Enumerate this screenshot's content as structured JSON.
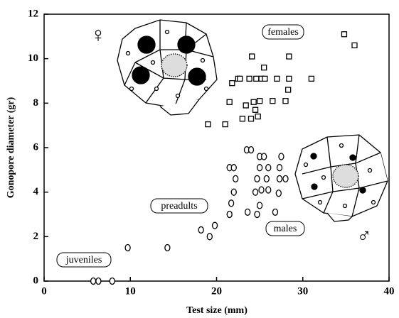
{
  "chart_data": {
    "type": "scatter",
    "xlabel": "Test size (mm)",
    "ylabel": "Gonopore diameter (gr)",
    "xlim": [
      0,
      40
    ],
    "ylim": [
      0,
      12
    ],
    "xticks": [
      0,
      10,
      20,
      30,
      40
    ],
    "yticks": [
      0,
      2,
      4,
      6,
      8,
      10,
      12
    ],
    "color": "#000000",
    "series": [
      {
        "marker": "square",
        "x": [
          19,
          21,
          21.5,
          21.8,
          22.5,
          22.7,
          23,
          23.4,
          23.8,
          24,
          24.1,
          24.3,
          24.5,
          24.6,
          24.8,
          25,
          25.2,
          25.5,
          25.6,
          26.5,
          27,
          28,
          28.3,
          28.4,
          28.4,
          31,
          34.8,
          36
        ],
        "values": [
          7.05,
          7.05,
          8.05,
          8.9,
          9.1,
          9.1,
          7.3,
          7.9,
          9.1,
          7.3,
          10.1,
          8.05,
          7.7,
          9.1,
          7.4,
          8.1,
          9.1,
          9.6,
          9.1,
          8.1,
          9.1,
          8.1,
          8.6,
          9.1,
          10.1,
          9.1,
          11.1,
          10.6
        ]
      },
      {
        "marker": "circle",
        "x": [
          5.7,
          6.3,
          7.9,
          9.7,
          14.3,
          18.2,
          19.2,
          19.8,
          21.5,
          21.7,
          22,
          21.5,
          22,
          22.2,
          23.5,
          24,
          23.6,
          24.5,
          24.7,
          25,
          25,
          25.2,
          25.5,
          25,
          25.8,
          26,
          26,
          26.8,
          27.2,
          27.3,
          27.3,
          27.5,
          28,
          24.7
        ],
        "values": [
          0,
          0,
          0,
          1.5,
          1.5,
          2.3,
          2.0,
          2.5,
          3.0,
          3.5,
          4.0,
          5.1,
          5.1,
          4.6,
          5.9,
          5.9,
          3.1,
          4.0,
          4.6,
          5.1,
          5.6,
          4.1,
          5.6,
          3.4,
          4.6,
          4.1,
          5.1,
          3.1,
          3.95,
          4.6,
          5.1,
          5.6,
          4.6,
          3.0
        ]
      }
    ],
    "annotations": [
      "females",
      "males",
      "preadults",
      "juveniles",
      "♀",
      "♂"
    ]
  }
}
